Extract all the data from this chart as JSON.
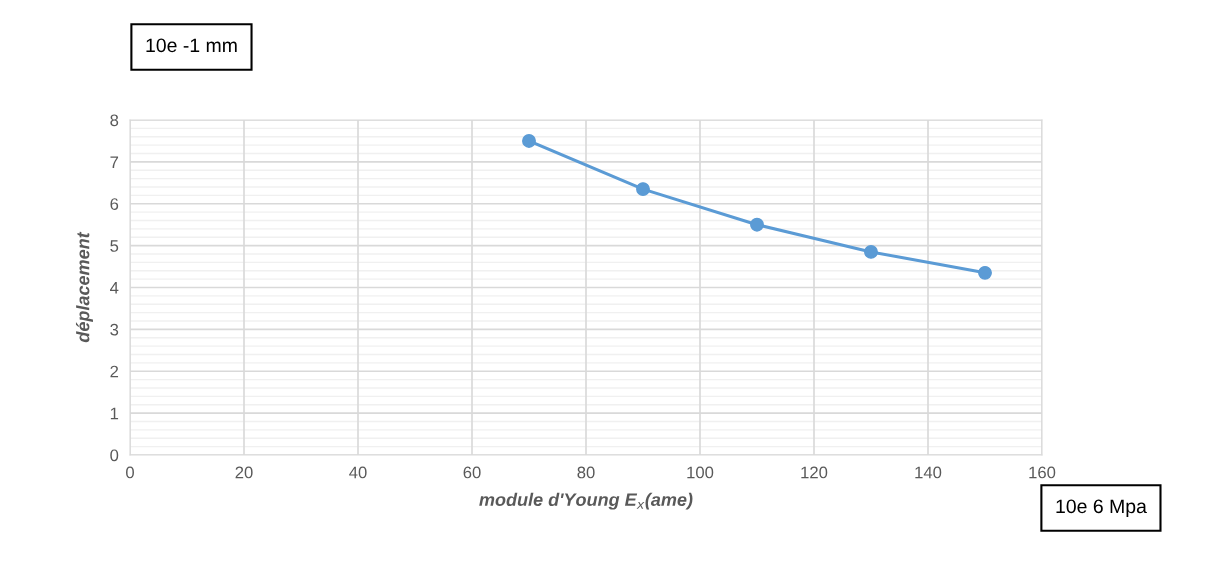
{
  "chart_data": {
    "type": "line",
    "xlabel": "module d'Young E$_{x}$(ame)",
    "ylabel": "déplacement",
    "annotations": [
      "10e -1 mm",
      "10e 6 Mpa"
    ],
    "x": [
      70,
      90,
      110,
      130,
      150
    ],
    "series": [
      {
        "color": "#5b9bd5",
        "values": [
          7.5,
          6.35,
          5.5,
          4.85,
          4.35
        ]
      }
    ],
    "xlim": [
      0,
      160
    ],
    "xticks": [
      0,
      20,
      40,
      60,
      80,
      100,
      120,
      140,
      160
    ],
    "ylim": [
      0,
      8
    ],
    "yticks": [
      0,
      1,
      2,
      3,
      4,
      5,
      6,
      7,
      8
    ],
    "grid": true,
    "marker": "circle",
    "line_style": "solid"
  }
}
